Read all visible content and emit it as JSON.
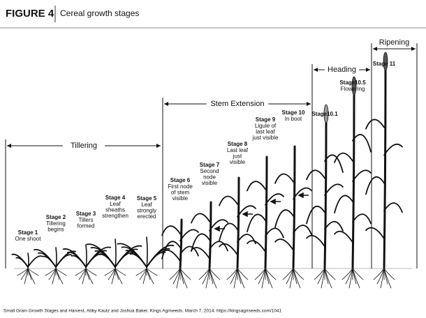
{
  "header": {
    "figure_label": "FIGURE 4",
    "title": "Cereal growth stages"
  },
  "phases": [
    "Tillering",
    "Stem Extension",
    "Heading",
    "Ripening"
  ],
  "stages": [
    {
      "name": "Stage 1",
      "description": [
        "One shoot"
      ]
    },
    {
      "name": "Stage 2",
      "description": [
        "Tillering",
        "begins"
      ]
    },
    {
      "name": "Stage 3",
      "description": [
        "Tillers",
        "formed"
      ]
    },
    {
      "name": "Stage 4",
      "description": [
        "Leaf",
        "sheaths",
        "strengthen"
      ]
    },
    {
      "name": "Stage 5",
      "description": [
        "Leaf",
        "strongly",
        "erected"
      ]
    },
    {
      "name": "Stage 6",
      "description": [
        "First node",
        "of stem",
        "visible"
      ]
    },
    {
      "name": "Stage 7",
      "description": [
        "Second",
        "node",
        "visible"
      ]
    },
    {
      "name": "Stage 8",
      "description": [
        "Last leaf",
        "just",
        "visible"
      ]
    },
    {
      "name": "Stage 9",
      "description": [
        "Ligule of",
        "last leaf",
        "just visible"
      ]
    },
    {
      "name": "Stage 10",
      "description": [
        "In boot"
      ]
    },
    {
      "name": "Stage10.1"
    },
    {
      "name": "Stage10.5",
      "description": [
        "Flowering"
      ]
    },
    {
      "name": "Stage 11"
    }
  ],
  "caption": "Small Grain Growth Stages and Harvest, Abby Kautz and Joshua Baker, Kings Agriseeds. March 7, 2014. https://kingsagriseeds.com/1041"
}
